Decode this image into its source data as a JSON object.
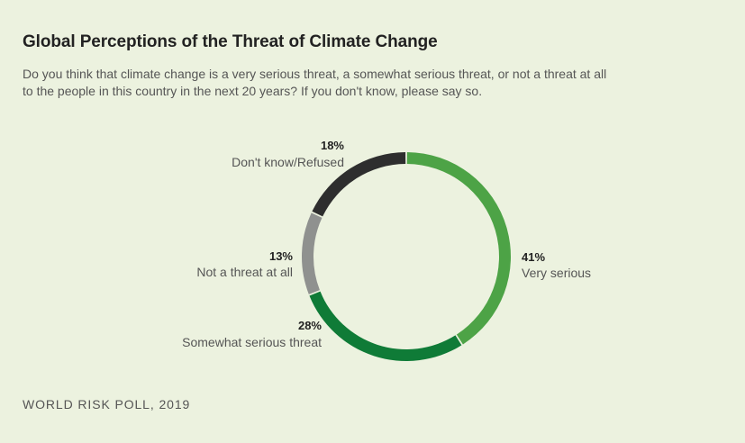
{
  "title": "Global Perceptions of the Threat of Climate Change",
  "subtitle": "Do you think that climate change is a very serious threat, a somewhat serious threat, or not a threat at all to the people in this country in the next 20 years? If you don't know, please say so.",
  "source": "WORLD RISK POLL, 2019",
  "chart_data": {
    "type": "pie",
    "donut": true,
    "start_angle_deg": 0,
    "direction": "clockwise",
    "slices": [
      {
        "label": "Very serious",
        "value": 41,
        "value_label": "41%",
        "color": "#4da346"
      },
      {
        "label": "Somewhat serious threat",
        "value": 28,
        "value_label": "28%",
        "color": "#0f7b37"
      },
      {
        "label": "Not a threat at all",
        "value": 13,
        "value_label": "13%",
        "color": "#8f918f"
      },
      {
        "label": "Don't know/Refused",
        "value": 18,
        "value_label": "18%",
        "color": "#2e2e2e"
      }
    ],
    "legend": "none"
  }
}
